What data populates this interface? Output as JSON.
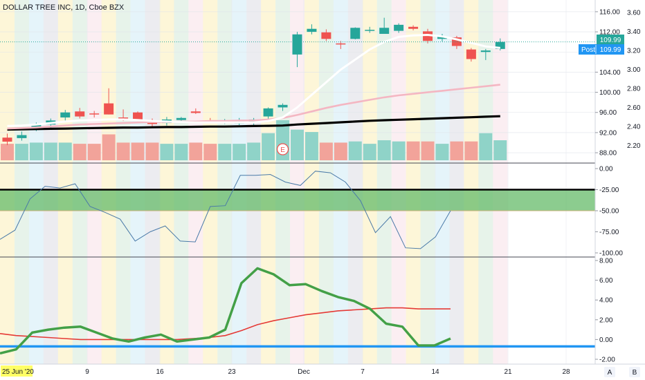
{
  "header": {
    "title": "DOLLAR TREE INC, 1D, Cboe BZX"
  },
  "price_badges": {
    "last": "109.99",
    "post_label": "Post",
    "post_value": "109.99"
  },
  "earnings_marker": "E",
  "x_axis": {
    "first_label": "25 Jun '20",
    "labels": [
      "9",
      "16",
      "23",
      "Dec",
      "7",
      "14",
      "21",
      "28"
    ],
    "scale_buttons": [
      "A",
      "B"
    ]
  },
  "colors": {
    "up": "#26a69a",
    "down": "#ef5350",
    "sma_fast": "#ffffff",
    "sma_mid": "#f4b6c2",
    "sma_slow": "#000000",
    "williams_line": "#4a7aa8",
    "williams_band": "#66bb6a",
    "macd": "#43a047",
    "signal": "#e53935",
    "zero_line": "#2196f3",
    "badge": "#2196f3"
  },
  "chart_data": [
    {
      "type": "candlestick",
      "title": "DOLLAR TREE INC, 1D, Cboe BZX",
      "y_left_ticks": [
        "116.00",
        "112.00",
        "108.00",
        "104.00",
        "100.00",
        "96.00",
        "92.00",
        "88.00"
      ],
      "y_right_ticks": [
        "3.60",
        "3.40",
        "3.20",
        "3.00",
        "2.80",
        "2.60",
        "2.40",
        "2.20"
      ],
      "ylim": [
        86.5,
        117.5
      ],
      "candles": [
        {
          "o": 91.0,
          "h": 91.8,
          "l": 89.5,
          "c": 90.2
        },
        {
          "o": 90.9,
          "h": 92.2,
          "l": 90.4,
          "c": 91.5
        },
        {
          "o": 92.8,
          "h": 94.0,
          "l": 92.3,
          "c": 93.5
        },
        {
          "o": 93.6,
          "h": 94.8,
          "l": 92.8,
          "c": 94.4
        },
        {
          "o": 95.0,
          "h": 96.5,
          "l": 94.4,
          "c": 96.0
        },
        {
          "o": 96.2,
          "h": 96.9,
          "l": 94.8,
          "c": 95.2
        },
        {
          "o": 95.8,
          "h": 96.3,
          "l": 95.0,
          "c": 95.6
        },
        {
          "o": 97.8,
          "h": 100.8,
          "l": 95.6,
          "c": 95.6
        },
        {
          "o": 95.0,
          "h": 96.6,
          "l": 94.3,
          "c": 94.9
        },
        {
          "o": 96.0,
          "h": 96.2,
          "l": 94.3,
          "c": 94.6
        },
        {
          "o": 94.3,
          "h": 94.8,
          "l": 93.0,
          "c": 93.7
        },
        {
          "o": 93.9,
          "h": 95.1,
          "l": 93.4,
          "c": 94.6
        },
        {
          "o": 94.5,
          "h": 95.1,
          "l": 94.0,
          "c": 94.9
        },
        {
          "o": 96.2,
          "h": 96.8,
          "l": 95.7,
          "c": 95.9
        },
        {
          "o": 94.4,
          "h": 94.9,
          "l": 93.9,
          "c": 94.0
        },
        {
          "o": 94.1,
          "h": 94.7,
          "l": 93.7,
          "c": 94.2
        },
        {
          "o": 93.8,
          "h": 94.9,
          "l": 93.5,
          "c": 94.2
        },
        {
          "o": 93.9,
          "h": 94.9,
          "l": 93.5,
          "c": 94.6
        },
        {
          "o": 95.2,
          "h": 97.0,
          "l": 94.7,
          "c": 96.8
        },
        {
          "o": 97.0,
          "h": 97.8,
          "l": 96.3,
          "c": 97.5
        },
        {
          "o": 107.5,
          "h": 112.0,
          "l": 105.0,
          "c": 111.5
        },
        {
          "o": 112.0,
          "h": 113.5,
          "l": 111.5,
          "c": 112.6
        },
        {
          "o": 111.9,
          "h": 112.5,
          "l": 110.2,
          "c": 110.6
        },
        {
          "o": 109.7,
          "h": 110.2,
          "l": 108.6,
          "c": 109.5
        },
        {
          "o": 110.6,
          "h": 112.9,
          "l": 110.5,
          "c": 112.8
        },
        {
          "o": 112.4,
          "h": 113.0,
          "l": 111.8,
          "c": 112.4
        },
        {
          "o": 111.6,
          "h": 114.8,
          "l": 111.6,
          "c": 112.8
        },
        {
          "o": 112.2,
          "h": 113.7,
          "l": 111.8,
          "c": 113.4
        },
        {
          "o": 113.0,
          "h": 113.3,
          "l": 112.3,
          "c": 112.6
        },
        {
          "o": 112.1,
          "h": 112.6,
          "l": 109.7,
          "c": 110.2
        },
        {
          "o": 110.6,
          "h": 111.6,
          "l": 110.1,
          "c": 111.1
        },
        {
          "o": 110.9,
          "h": 111.2,
          "l": 108.6,
          "c": 109.2
        },
        {
          "o": 108.5,
          "h": 108.8,
          "l": 106.1,
          "c": 106.6
        },
        {
          "o": 108.0,
          "h": 108.6,
          "l": 106.4,
          "c": 108.3
        },
        {
          "o": 108.6,
          "h": 110.7,
          "l": 108.3,
          "c": 110.0
        }
      ],
      "volume": [
        1.4,
        1.4,
        1.5,
        1.5,
        1.5,
        1.4,
        1.4,
        2.2,
        1.5,
        1.5,
        1.5,
        1.4,
        1.4,
        1.5,
        1.4,
        1.4,
        1.4,
        1.5,
        2.3,
        3.4,
        2.6,
        2.4,
        1.5,
        1.5,
        1.6,
        1.4,
        1.7,
        1.6,
        1.6,
        1.6,
        1.4,
        1.6,
        1.6,
        2.3,
        1.7
      ],
      "sma_fast": [
        93.3,
        93.4,
        93.6,
        93.9,
        94.2,
        94.4,
        94.5,
        94.6,
        94.6,
        94.5,
        94.3,
        94.2,
        94.1,
        94.0,
        94.0,
        94.0,
        94.0,
        94.0,
        94.3,
        95.0,
        97.0,
        99.5,
        102.0,
        104.5,
        106.5,
        108.5,
        110.0,
        111.0,
        111.3,
        111.4,
        111.1,
        110.5,
        109.8,
        109.1,
        108.8
      ],
      "sma_mid": [
        92.8,
        92.9,
        93.0,
        93.2,
        93.4,
        93.6,
        93.7,
        93.8,
        93.9,
        94.0,
        94.1,
        94.1,
        94.2,
        94.2,
        94.3,
        94.3,
        94.4,
        94.4,
        94.6,
        94.9,
        95.5,
        96.2,
        96.9,
        97.5,
        98.0,
        98.5,
        99.0,
        99.4,
        99.7,
        100.0,
        100.3,
        100.6,
        100.9,
        101.2,
        101.5
      ],
      "sma_slow": [
        92.6,
        92.65,
        92.7,
        92.75,
        92.8,
        92.85,
        92.9,
        92.95,
        93.0,
        93.0,
        93.05,
        93.1,
        93.1,
        93.15,
        93.2,
        93.2,
        93.25,
        93.3,
        93.35,
        93.4,
        93.6,
        93.75,
        93.9,
        94.05,
        94.2,
        94.35,
        94.45,
        94.55,
        94.65,
        94.75,
        94.85,
        94.95,
        95.05,
        95.15,
        95.25
      ]
    },
    {
      "type": "line",
      "y_ticks": [
        "0.00",
        "-25.00",
        "-50.00",
        "-75.00",
        "-100.00"
      ],
      "ylim": [
        -100,
        0
      ],
      "band": [
        -50,
        -25
      ],
      "levels": [
        -25,
        -50
      ],
      "values": [
        -84,
        -73,
        -36,
        -21,
        -23,
        -18,
        -45,
        -52,
        -60,
        -86,
        -75,
        -68,
        -86,
        -87,
        -45,
        -44,
        -8,
        -8,
        -7,
        -16,
        -20,
        -3,
        -5,
        -16,
        -38,
        -76,
        -57,
        -94,
        -95,
        -81,
        -50
      ]
    },
    {
      "type": "line",
      "y_ticks": [
        "8.00",
        "6.00",
        "4.00",
        "2.00",
        "0.00",
        "-2.00"
      ],
      "ylim": [
        -2,
        8
      ],
      "zero_line": -0.7,
      "series": [
        {
          "values": [
            -1.4,
            -1.0,
            0.7,
            1.0,
            1.2,
            1.3,
            0.7,
            0.1,
            -0.2,
            0.2,
            0.5,
            -0.2,
            0.0,
            0.2,
            1.0,
            5.7,
            7.2,
            6.6,
            5.5,
            5.6,
            4.9,
            4.3,
            3.9,
            3.1,
            1.6,
            1.3,
            -0.6,
            -0.6,
            0.1
          ]
        },
        {
          "values": [
            0.6,
            0.4,
            0.3,
            0.2,
            0.1,
            0.0,
            0.0,
            0.0,
            0.0,
            0.0,
            0.0,
            0.0,
            0.1,
            0.2,
            0.4,
            0.9,
            1.5,
            1.9,
            2.2,
            2.5,
            2.7,
            2.9,
            3.0,
            3.1,
            3.2,
            3.2,
            3.1,
            3.1,
            3.1
          ]
        }
      ]
    }
  ]
}
